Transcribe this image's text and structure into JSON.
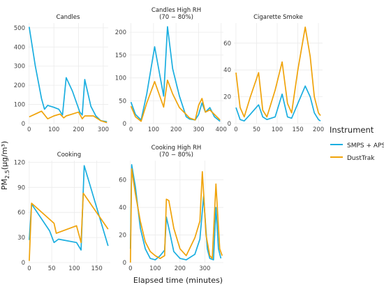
{
  "figure": {
    "ylabel_main": "PM",
    "ylabel_sub": "2.5",
    "ylabel_rest": "(µg/m³)",
    "xlabel": "Elapsed time (minutes)"
  },
  "legend": {
    "title": "Instrument",
    "items": [
      {
        "label": "SMPS + APS",
        "color": "#1aaee0"
      },
      {
        "label": "DustTrak",
        "color": "#f0a30a"
      }
    ]
  },
  "chart_data": [
    {
      "type": "line",
      "title": "Candles",
      "xlim": [
        -5,
        320
      ],
      "ylim": [
        0,
        525
      ],
      "xticks": [
        0,
        100,
        200,
        300
      ],
      "yticks": [
        0,
        100,
        200,
        300,
        400,
        500
      ],
      "series": [
        {
          "name": "SMPS + APS",
          "x": [
            0,
            25,
            50,
            62,
            75,
            100,
            120,
            135,
            150,
            175,
            205,
            215,
            225,
            250,
            270,
            290,
            315
          ],
          "y": [
            505,
            300,
            130,
            75,
            95,
            85,
            75,
            45,
            240,
            170,
            60,
            45,
            230,
            90,
            40,
            15,
            10
          ]
        },
        {
          "name": "DustTrak",
          "x": [
            0,
            25,
            50,
            75,
            100,
            125,
            140,
            150,
            175,
            200,
            215,
            225,
            240,
            260,
            290,
            315
          ],
          "y": [
            35,
            50,
            65,
            25,
            40,
            50,
            30,
            40,
            50,
            60,
            25,
            40,
            40,
            40,
            15,
            5
          ]
        }
      ]
    },
    {
      "type": "line",
      "title": "Candles High RH\n(70 − 80%)",
      "xlim": [
        -8,
        410
      ],
      "ylim": [
        0,
        220
      ],
      "xticks": [
        0,
        100,
        200,
        300,
        400
      ],
      "yticks": [
        0,
        50,
        100,
        150,
        200
      ],
      "series": [
        {
          "name": "SMPS + APS",
          "x": [
            0,
            20,
            45,
            70,
            105,
            145,
            162,
            185,
            215,
            245,
            260,
            285,
            300,
            315,
            330,
            350,
            370,
            395
          ],
          "y": [
            47,
            20,
            8,
            65,
            168,
            60,
            212,
            120,
            60,
            15,
            10,
            8,
            20,
            45,
            25,
            35,
            15,
            5
          ]
        },
        {
          "name": "DustTrak",
          "x": [
            0,
            20,
            45,
            70,
            105,
            145,
            162,
            185,
            215,
            245,
            260,
            285,
            300,
            315,
            330,
            350,
            370,
            395
          ],
          "y": [
            38,
            15,
            5,
            45,
            92,
            36,
            95,
            65,
            35,
            20,
            12,
            8,
            40,
            55,
            25,
            30,
            20,
            8
          ]
        }
      ]
    },
    {
      "type": "line",
      "title": "Cigarette Smoke",
      "xlim": [
        -5,
        210
      ],
      "ylim": [
        0,
        75
      ],
      "xticks": [
        0,
        50,
        100,
        150,
        200
      ],
      "yticks": [
        0,
        20,
        40,
        60
      ],
      "series": [
        {
          "name": "SMPS + APS",
          "x": [
            0,
            10,
            20,
            35,
            55,
            65,
            75,
            95,
            112,
            125,
            135,
            150,
            168,
            180,
            190,
            200,
            205
          ],
          "y": [
            12,
            3,
            2,
            7,
            14,
            5,
            3,
            5,
            22,
            5,
            4,
            15,
            28,
            20,
            8,
            3,
            2
          ]
        },
        {
          "name": "DustTrak",
          "x": [
            0,
            10,
            20,
            35,
            55,
            65,
            75,
            95,
            112,
            125,
            135,
            150,
            168,
            180,
            190,
            200,
            205
          ],
          "y": [
            38,
            12,
            5,
            20,
            38,
            10,
            5,
            25,
            46,
            15,
            8,
            40,
            72,
            50,
            20,
            8,
            6
          ]
        }
      ]
    },
    {
      "type": "line",
      "title": "Cooking",
      "xlim": [
        -3,
        180
      ],
      "ylim": [
        0,
        122
      ],
      "xticks": [
        0,
        50,
        100,
        150
      ],
      "yticks": [
        0,
        30,
        60,
        90,
        120
      ],
      "series": [
        {
          "name": "SMPS + APS",
          "x": [
            0,
            5,
            45,
            55,
            65,
            105,
            115,
            122,
            175
          ],
          "y": [
            27,
            70,
            38,
            24,
            28,
            24,
            15,
            116,
            20
          ]
        },
        {
          "name": "DustTrak",
          "x": [
            0,
            5,
            55,
            60,
            105,
            115,
            120,
            175
          ],
          "y": [
            2,
            71,
            47,
            35,
            44,
            24,
            83,
            40
          ]
        }
      ]
    },
    {
      "type": "line",
      "title": "Cooking High RH\n(70 − 80%)",
      "xlim": [
        -5,
        375
      ],
      "ylim": [
        0,
        74
      ],
      "xticks": [
        0,
        100,
        200,
        300
      ],
      "yticks": [
        0,
        20,
        40,
        60
      ],
      "series": [
        {
          "name": "SMPS + APS",
          "x": [
            0,
            5,
            20,
            40,
            60,
            80,
            100,
            120,
            138,
            145,
            155,
            175,
            200,
            225,
            260,
            280,
            295,
            310,
            320,
            335,
            345,
            355,
            365
          ],
          "y": [
            10,
            71,
            55,
            25,
            10,
            3,
            2,
            5,
            9,
            33,
            25,
            8,
            3,
            2,
            6,
            17,
            48,
            10,
            3,
            2,
            40,
            10,
            3
          ]
        },
        {
          "name": "DustTrak",
          "x": [
            0,
            5,
            20,
            40,
            60,
            80,
            100,
            120,
            138,
            145,
            155,
            175,
            200,
            225,
            260,
            280,
            290,
            305,
            320,
            330,
            345,
            360,
            370
          ],
          "y": [
            0,
            68,
            50,
            30,
            15,
            8,
            5,
            3,
            5,
            46,
            45,
            25,
            10,
            5,
            18,
            30,
            66,
            20,
            5,
            3,
            57,
            10,
            5
          ]
        }
      ]
    }
  ]
}
